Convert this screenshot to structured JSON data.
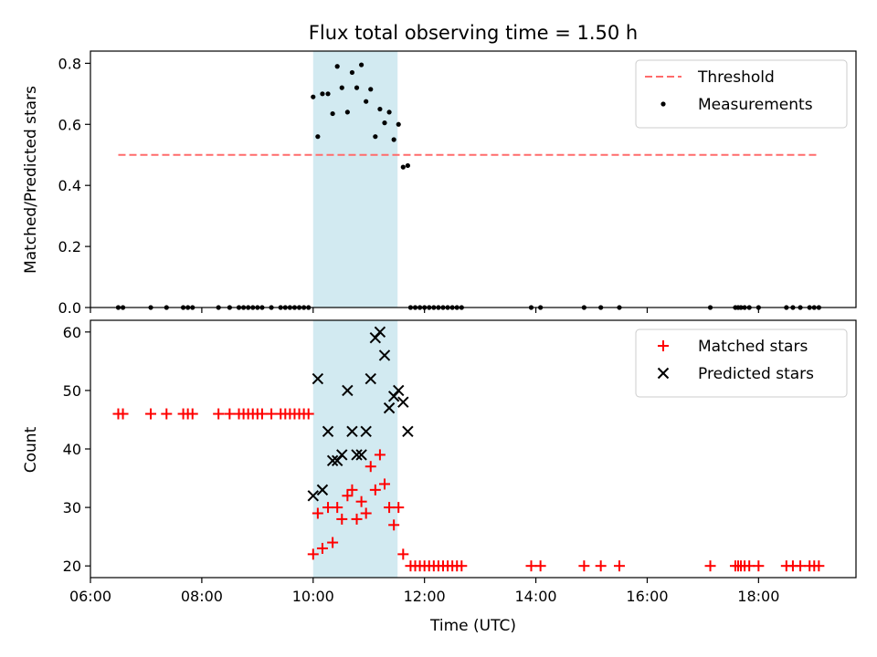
{
  "chart_data": {
    "title": "Flux total observing time = 1.50 h",
    "xlabel": "Time (UTC)",
    "x_unit": "hours UTC",
    "xlim": [
      6.0,
      19.75
    ],
    "x_ticks": [
      "06:00",
      "08:00",
      "10:00",
      "12:00",
      "14:00",
      "16:00",
      "18:00"
    ],
    "highlight_span": [
      "10:00",
      "11:31"
    ],
    "highlight_color": "#add8e6",
    "panels": [
      {
        "type": "scatter",
        "ylabel": "Matched/Predicted stars",
        "ylim": [
          0,
          0.84
        ],
        "y_ticks": [
          "0.0",
          "0.2",
          "0.4",
          "0.6",
          "0.8"
        ],
        "legend_position": "top-right",
        "threshold": {
          "name": "Threshold",
          "value": 0.5,
          "x_range": [
            "06:30",
            "19:05"
          ],
          "color": "#ff6b6b"
        },
        "series": [
          {
            "name": "Measurements",
            "color": "#000000",
            "points": [
              [
                "06:30",
                0
              ],
              [
                "06:35",
                0
              ],
              [
                "07:05",
                0
              ],
              [
                "07:22",
                0
              ],
              [
                "07:40",
                0
              ],
              [
                "07:45",
                0
              ],
              [
                "07:50",
                0
              ],
              [
                "08:18",
                0
              ],
              [
                "08:30",
                0
              ],
              [
                "08:40",
                0
              ],
              [
                "08:45",
                0
              ],
              [
                "08:50",
                0
              ],
              [
                "08:55",
                0
              ],
              [
                "09:00",
                0
              ],
              [
                "09:05",
                0
              ],
              [
                "09:15",
                0
              ],
              [
                "09:25",
                0
              ],
              [
                "09:30",
                0
              ],
              [
                "09:35",
                0
              ],
              [
                "09:40",
                0
              ],
              [
                "09:45",
                0
              ],
              [
                "09:50",
                0
              ],
              [
                "09:55",
                0
              ],
              [
                "10:00",
                0.69
              ],
              [
                "10:05",
                0.56
              ],
              [
                "10:10",
                0.7
              ],
              [
                "10:16",
                0.7
              ],
              [
                "10:21",
                0.635
              ],
              [
                "10:26",
                0.79
              ],
              [
                "10:31",
                0.72
              ],
              [
                "10:37",
                0.64
              ],
              [
                "10:42",
                0.77
              ],
              [
                "10:47",
                0.72
              ],
              [
                "10:52",
                0.795
              ],
              [
                "10:57",
                0.675
              ],
              [
                "11:02",
                0.715
              ],
              [
                "11:07",
                0.56
              ],
              [
                "11:12",
                0.65
              ],
              [
                "11:17",
                0.605
              ],
              [
                "11:22",
                0.64
              ],
              [
                "11:27",
                0.55
              ],
              [
                "11:32",
                0.6
              ],
              [
                "11:37",
                0.46
              ],
              [
                "11:42",
                0.465
              ],
              [
                "11:45",
                0
              ],
              [
                "11:50",
                0
              ],
              [
                "11:55",
                0
              ],
              [
                "12:00",
                0
              ],
              [
                "12:05",
                0
              ],
              [
                "12:10",
                0
              ],
              [
                "12:15",
                0
              ],
              [
                "12:20",
                0
              ],
              [
                "12:25",
                0
              ],
              [
                "12:30",
                0
              ],
              [
                "12:35",
                0
              ],
              [
                "12:40",
                0
              ],
              [
                "13:55",
                0
              ],
              [
                "14:05",
                0
              ],
              [
                "14:52",
                0
              ],
              [
                "15:10",
                0
              ],
              [
                "15:30",
                0
              ],
              [
                "17:08",
                0
              ],
              [
                "17:35",
                0
              ],
              [
                "17:38",
                0
              ],
              [
                "17:41",
                0
              ],
              [
                "17:45",
                0
              ],
              [
                "17:50",
                0
              ],
              [
                "18:00",
                0
              ],
              [
                "18:30",
                0
              ],
              [
                "18:37",
                0
              ],
              [
                "18:45",
                0
              ],
              [
                "18:55",
                0
              ],
              [
                "19:00",
                0
              ],
              [
                "19:05",
                0
              ]
            ]
          }
        ]
      },
      {
        "type": "scatter",
        "ylabel": "Count",
        "ylim": [
          18,
          62
        ],
        "y_ticks": [
          "20",
          "30",
          "40",
          "50",
          "60"
        ],
        "legend_position": "top-right",
        "series": [
          {
            "name": "Matched stars",
            "marker": "plus",
            "color": "#ff0000",
            "points": [
              [
                "06:30",
                46
              ],
              [
                "06:35",
                46
              ],
              [
                "07:05",
                46
              ],
              [
                "07:22",
                46
              ],
              [
                "07:40",
                46
              ],
              [
                "07:45",
                46
              ],
              [
                "07:50",
                46
              ],
              [
                "08:18",
                46
              ],
              [
                "08:30",
                46
              ],
              [
                "08:40",
                46
              ],
              [
                "08:45",
                46
              ],
              [
                "08:50",
                46
              ],
              [
                "08:55",
                46
              ],
              [
                "09:00",
                46
              ],
              [
                "09:05",
                46
              ],
              [
                "09:15",
                46
              ],
              [
                "09:25",
                46
              ],
              [
                "09:30",
                46
              ],
              [
                "09:35",
                46
              ],
              [
                "09:40",
                46
              ],
              [
                "09:45",
                46
              ],
              [
                "09:50",
                46
              ],
              [
                "09:55",
                46
              ],
              [
                "10:00",
                22
              ],
              [
                "10:05",
                29
              ],
              [
                "10:10",
                23
              ],
              [
                "10:16",
                30
              ],
              [
                "10:21",
                24
              ],
              [
                "10:26",
                30
              ],
              [
                "10:31",
                28
              ],
              [
                "10:37",
                32
              ],
              [
                "10:42",
                33
              ],
              [
                "10:47",
                28
              ],
              [
                "10:52",
                31
              ],
              [
                "10:57",
                29
              ],
              [
                "11:02",
                37
              ],
              [
                "11:07",
                33
              ],
              [
                "11:12",
                39
              ],
              [
                "11:17",
                34
              ],
              [
                "11:22",
                30
              ],
              [
                "11:27",
                27
              ],
              [
                "11:32",
                30
              ],
              [
                "11:37",
                22
              ],
              [
                "11:45",
                20
              ],
              [
                "11:50",
                20
              ],
              [
                "11:55",
                20
              ],
              [
                "12:00",
                20
              ],
              [
                "12:05",
                20
              ],
              [
                "12:10",
                20
              ],
              [
                "12:15",
                20
              ],
              [
                "12:20",
                20
              ],
              [
                "12:25",
                20
              ],
              [
                "12:30",
                20
              ],
              [
                "12:35",
                20
              ],
              [
                "12:40",
                20
              ],
              [
                "13:55",
                20
              ],
              [
                "14:05",
                20
              ],
              [
                "14:52",
                20
              ],
              [
                "15:10",
                20
              ],
              [
                "15:30",
                20
              ],
              [
                "17:08",
                20
              ],
              [
                "17:35",
                20
              ],
              [
                "17:38",
                20
              ],
              [
                "17:41",
                20
              ],
              [
                "17:45",
                20
              ],
              [
                "17:50",
                20
              ],
              [
                "18:00",
                20
              ],
              [
                "18:30",
                20
              ],
              [
                "18:37",
                20
              ],
              [
                "18:45",
                20
              ],
              [
                "18:55",
                20
              ],
              [
                "19:00",
                20
              ],
              [
                "19:05",
                20
              ]
            ]
          },
          {
            "name": "Predicted stars",
            "marker": "x",
            "color": "#000000",
            "points": [
              [
                "10:00",
                32
              ],
              [
                "10:05",
                52
              ],
              [
                "10:10",
                33
              ],
              [
                "10:16",
                43
              ],
              [
                "10:21",
                38
              ],
              [
                "10:26",
                38
              ],
              [
                "10:31",
                39
              ],
              [
                "10:37",
                50
              ],
              [
                "10:42",
                43
              ],
              [
                "10:47",
                39
              ],
              [
                "10:52",
                39
              ],
              [
                "10:57",
                43
              ],
              [
                "11:02",
                52
              ],
              [
                "11:07",
                59
              ],
              [
                "11:12",
                60
              ],
              [
                "11:17",
                56
              ],
              [
                "11:22",
                47
              ],
              [
                "11:27",
                49
              ],
              [
                "11:32",
                50
              ],
              [
                "11:37",
                48
              ],
              [
                "11:42",
                43
              ]
            ]
          }
        ]
      }
    ]
  }
}
